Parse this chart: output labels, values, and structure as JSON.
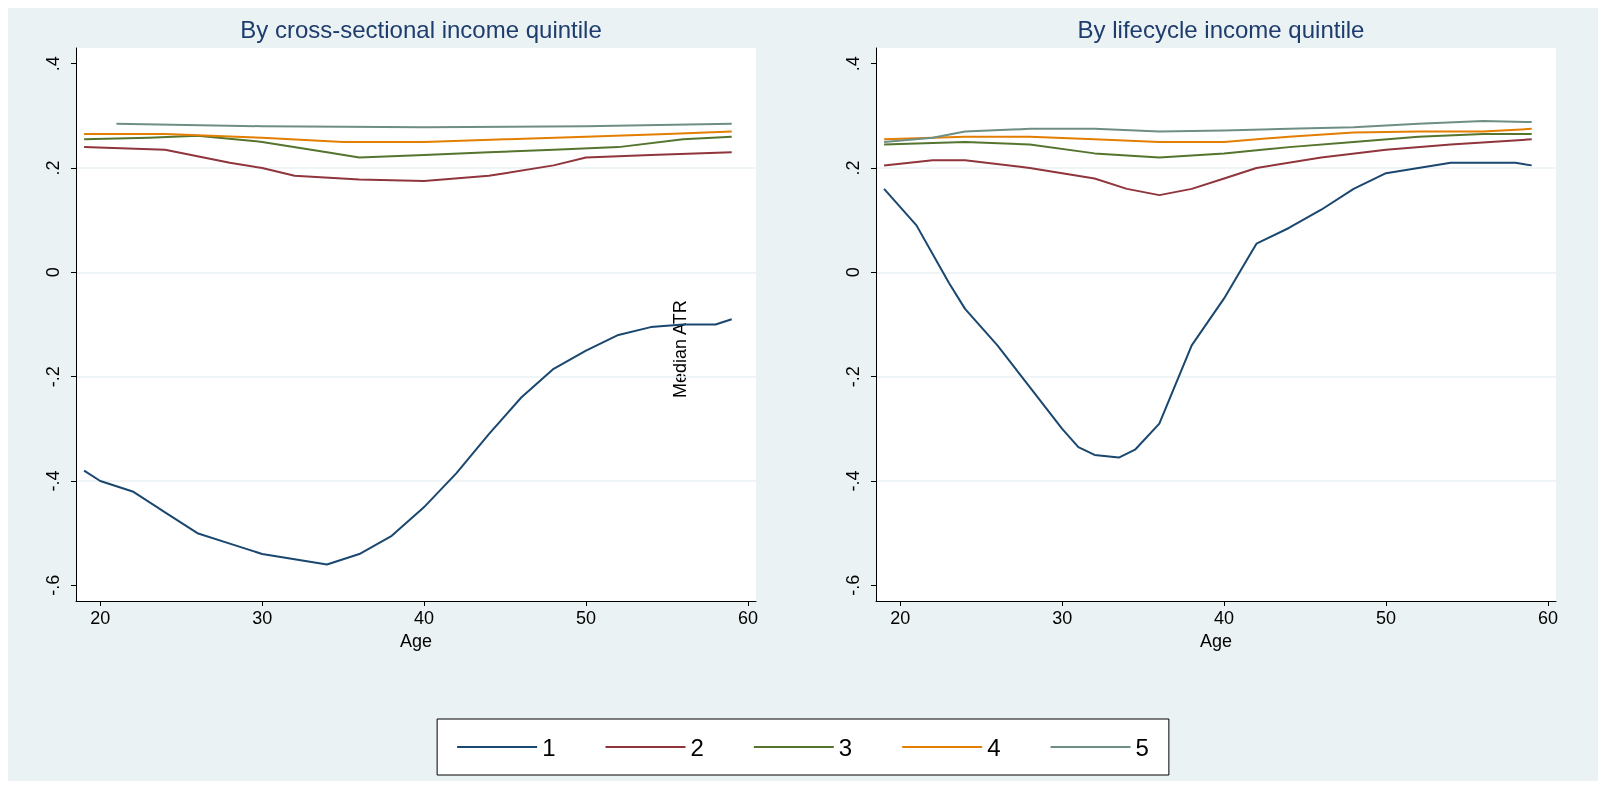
{
  "chart_data": [
    {
      "type": "line",
      "title": "By cross-sectional income quintile",
      "xlabel": "Age",
      "ylabel": "Median ATR",
      "xlim": [
        18.5,
        60.5
      ],
      "xticks": [
        20,
        30,
        40,
        50,
        60
      ],
      "ylim": [
        -0.63,
        0.43
      ],
      "yticks": [
        {
          "value": -0.6,
          "label": "-.6"
        },
        {
          "value": -0.4,
          "label": "-.4"
        },
        {
          "value": -0.2,
          "label": "-.2"
        },
        0,
        {
          "value": 0.2,
          "label": ".2"
        },
        {
          "value": 0.4,
          "label": ".4"
        }
      ],
      "grid": "y",
      "legend": "bottom",
      "marker": "none",
      "line_style": "solid",
      "series": [
        {
          "name": "1",
          "color": "#1a476f",
          "x": [
            19,
            20,
            22,
            24,
            26,
            28,
            30,
            32,
            34,
            36,
            38,
            40,
            42,
            44,
            46,
            48,
            50,
            52,
            54,
            56,
            58,
            59
          ],
          "values": [
            -0.38,
            -0.4,
            -0.42,
            -0.46,
            -0.5,
            -0.52,
            -0.54,
            -0.55,
            -0.56,
            -0.54,
            -0.505,
            -0.45,
            -0.385,
            -0.31,
            -0.24,
            -0.185,
            -0.15,
            -0.12,
            -0.105,
            -0.1,
            -0.1,
            -0.09
          ]
        },
        {
          "name": "2",
          "color": "#90353b",
          "x": [
            19,
            24,
            28,
            30,
            32,
            36,
            40,
            44,
            48,
            50,
            54,
            59
          ],
          "values": [
            0.24,
            0.235,
            0.21,
            0.2,
            0.185,
            0.178,
            0.175,
            0.185,
            0.205,
            0.22,
            0.225,
            0.23
          ]
        },
        {
          "name": "3",
          "color": "#55752f",
          "x": [
            19,
            23,
            26,
            30,
            34,
            36,
            40,
            44,
            48,
            52,
            56,
            59
          ],
          "values": [
            0.255,
            0.258,
            0.262,
            0.25,
            0.23,
            0.22,
            0.225,
            0.23,
            0.235,
            0.24,
            0.255,
            0.26
          ]
        },
        {
          "name": "4",
          "color": "#e37e00",
          "x": [
            19,
            24,
            30,
            35,
            40,
            45,
            50,
            55,
            59
          ],
          "values": [
            0.265,
            0.265,
            0.258,
            0.25,
            0.25,
            0.255,
            0.26,
            0.265,
            0.27
          ]
        },
        {
          "name": "5",
          "color": "#6e8e84",
          "x": [
            21,
            30,
            40,
            50,
            59
          ],
          "values": [
            0.285,
            0.28,
            0.278,
            0.28,
            0.285
          ]
        }
      ]
    },
    {
      "type": "line",
      "title": "By lifecycle income quintile",
      "xlabel": "Age",
      "xlim": [
        18.5,
        60.5
      ],
      "xticks": [
        20,
        30,
        40,
        50,
        60
      ],
      "ylim": [
        -0.63,
        0.43
      ],
      "yticks": [
        {
          "value": -0.6,
          "label": "-.6"
        },
        {
          "value": -0.4,
          "label": "-.4"
        },
        {
          "value": -0.2,
          "label": "-.2"
        },
        0,
        {
          "value": 0.2,
          "label": ".2"
        },
        {
          "value": 0.4,
          "label": ".4"
        }
      ],
      "grid": "y",
      "legend": "bottom",
      "marker": "none",
      "line_style": "solid",
      "series": [
        {
          "name": "1",
          "color": "#1a476f",
          "x": [
            19,
            21,
            23,
            24,
            26,
            28,
            30,
            31,
            32,
            33.5,
            34.5,
            36,
            38,
            39,
            40,
            42,
            44,
            46,
            48,
            50,
            52,
            54,
            58,
            59
          ],
          "values": [
            0.16,
            0.09,
            -0.02,
            -0.07,
            -0.14,
            -0.22,
            -0.3,
            -0.335,
            -0.35,
            -0.355,
            -0.34,
            -0.29,
            -0.14,
            -0.095,
            -0.05,
            0.055,
            0.085,
            0.12,
            0.16,
            0.19,
            0.2,
            0.21,
            0.21,
            0.205
          ]
        },
        {
          "name": "2",
          "color": "#90353b",
          "x": [
            19,
            22,
            24,
            28,
            30,
            32,
            34,
            36,
            38,
            40,
            42,
            46,
            50,
            54,
            59
          ],
          "values": [
            0.205,
            0.215,
            0.215,
            0.2,
            0.19,
            0.18,
            0.16,
            0.148,
            0.16,
            0.18,
            0.2,
            0.22,
            0.235,
            0.245,
            0.255
          ]
        },
        {
          "name": "3",
          "color": "#55752f",
          "x": [
            19,
            24,
            28,
            32,
            36,
            40,
            44,
            48,
            52,
            56,
            59
          ],
          "values": [
            0.245,
            0.25,
            0.245,
            0.228,
            0.22,
            0.228,
            0.24,
            0.25,
            0.26,
            0.265,
            0.265
          ]
        },
        {
          "name": "4",
          "color": "#e37e00",
          "x": [
            19,
            24,
            28,
            32,
            36,
            40,
            44,
            48,
            52,
            56,
            59
          ],
          "values": [
            0.255,
            0.26,
            0.26,
            0.255,
            0.25,
            0.25,
            0.26,
            0.268,
            0.27,
            0.27,
            0.275
          ]
        },
        {
          "name": "5",
          "color": "#6e8e84",
          "x": [
            19,
            22,
            24,
            28,
            32,
            36,
            40,
            44,
            48,
            52,
            56,
            59
          ],
          "values": [
            0.25,
            0.258,
            0.27,
            0.275,
            0.275,
            0.27,
            0.272,
            0.275,
            0.278,
            0.285,
            0.29,
            0.288
          ]
        }
      ]
    }
  ]
}
